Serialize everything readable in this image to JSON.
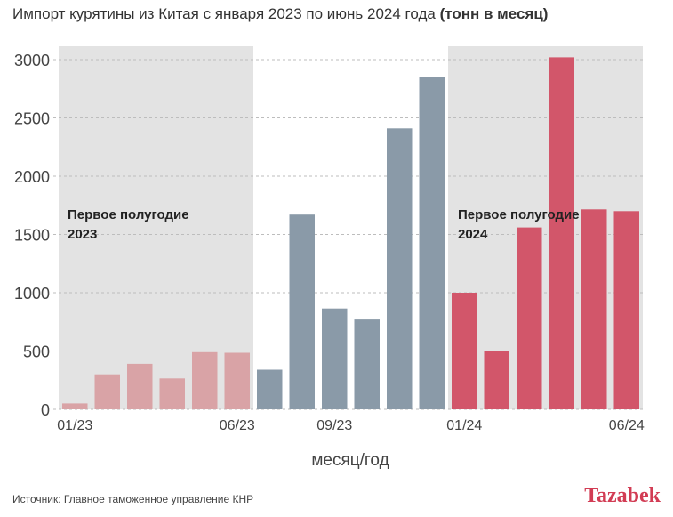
{
  "title": {
    "main": "Импорт курятины из Китая с января 2023 по июнь 2024 года ",
    "bold": "(тонн в месяц)"
  },
  "source": "Источник: Главное таможенное управление КНР",
  "logo": "Tazabek",
  "colors": {
    "period_2023_h1": "#d9a3a6",
    "middle": "#8a9aa8",
    "period_2024_h1": "#d2566a",
    "shade": "#e3e3e3"
  },
  "annotations": [
    {
      "text_line1": "Первое полугодие",
      "text_line2": "2023"
    },
    {
      "text_line1": "Первое полугодие",
      "text_line2": "2024"
    }
  ],
  "chart_data": {
    "type": "bar",
    "xlabel": "месяц/год",
    "ylabel": "",
    "ylim": [
      0,
      3000
    ],
    "yticks": [
      0,
      500,
      1000,
      1500,
      2000,
      2500,
      3000
    ],
    "grid": true,
    "categories": [
      "01/23",
      "02/23",
      "03/23",
      "04/23",
      "05/23",
      "06/23",
      "07/23",
      "08/23",
      "09/23",
      "10/23",
      "11/23",
      "12/23",
      "01/24",
      "02/24",
      "03/24",
      "04/24",
      "05/24",
      "06/24"
    ],
    "xtick_labels": [
      "01/23",
      "06/23",
      "09/23",
      "01/24",
      "06/24"
    ],
    "values": [
      50,
      300,
      390,
      265,
      490,
      485,
      340,
      1670,
      865,
      770,
      2410,
      2855,
      1000,
      500,
      1560,
      3020,
      1715,
      1700
    ],
    "groups": [
      "h1_2023",
      "h1_2023",
      "h1_2023",
      "h1_2023",
      "h1_2023",
      "h1_2023",
      "mid",
      "mid",
      "mid",
      "mid",
      "mid",
      "mid",
      "h1_2024",
      "h1_2024",
      "h1_2024",
      "h1_2024",
      "h1_2024",
      "h1_2024"
    ]
  }
}
